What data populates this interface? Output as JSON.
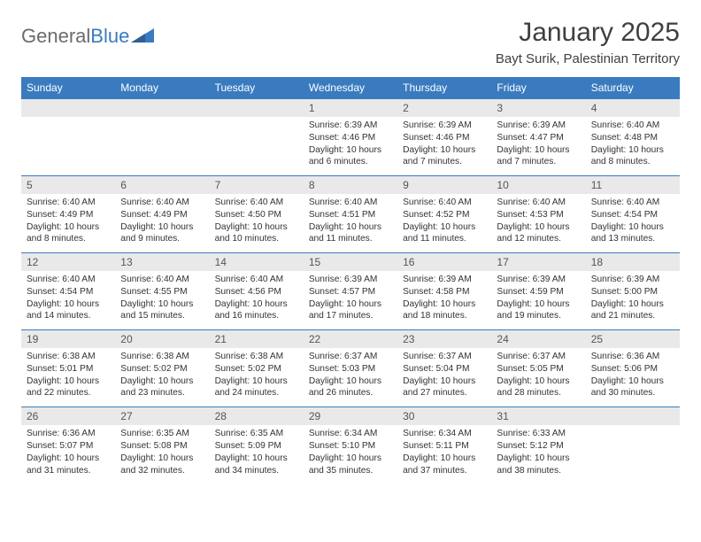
{
  "logo": {
    "text1": "General",
    "text2": "Blue"
  },
  "title": "January 2025",
  "location": "Bayt Surik, Palestinian Territory",
  "colors": {
    "header_bg": "#3a7bbf",
    "header_fg": "#ffffff",
    "daynum_bg": "#e9e9e9",
    "row_border": "#3a7bbf",
    "text": "#333333",
    "logo_gray": "#6b6b6b",
    "logo_blue": "#3a7bbf"
  },
  "weekdays": [
    "Sunday",
    "Monday",
    "Tuesday",
    "Wednesday",
    "Thursday",
    "Friday",
    "Saturday"
  ],
  "weeks": [
    [
      {
        "num": "",
        "lines": [
          "",
          "",
          "",
          ""
        ]
      },
      {
        "num": "",
        "lines": [
          "",
          "",
          "",
          ""
        ]
      },
      {
        "num": "",
        "lines": [
          "",
          "",
          "",
          ""
        ]
      },
      {
        "num": "1",
        "lines": [
          "Sunrise: 6:39 AM",
          "Sunset: 4:46 PM",
          "Daylight: 10 hours",
          "and 6 minutes."
        ]
      },
      {
        "num": "2",
        "lines": [
          "Sunrise: 6:39 AM",
          "Sunset: 4:46 PM",
          "Daylight: 10 hours",
          "and 7 minutes."
        ]
      },
      {
        "num": "3",
        "lines": [
          "Sunrise: 6:39 AM",
          "Sunset: 4:47 PM",
          "Daylight: 10 hours",
          "and 7 minutes."
        ]
      },
      {
        "num": "4",
        "lines": [
          "Sunrise: 6:40 AM",
          "Sunset: 4:48 PM",
          "Daylight: 10 hours",
          "and 8 minutes."
        ]
      }
    ],
    [
      {
        "num": "5",
        "lines": [
          "Sunrise: 6:40 AM",
          "Sunset: 4:49 PM",
          "Daylight: 10 hours",
          "and 8 minutes."
        ]
      },
      {
        "num": "6",
        "lines": [
          "Sunrise: 6:40 AM",
          "Sunset: 4:49 PM",
          "Daylight: 10 hours",
          "and 9 minutes."
        ]
      },
      {
        "num": "7",
        "lines": [
          "Sunrise: 6:40 AM",
          "Sunset: 4:50 PM",
          "Daylight: 10 hours",
          "and 10 minutes."
        ]
      },
      {
        "num": "8",
        "lines": [
          "Sunrise: 6:40 AM",
          "Sunset: 4:51 PM",
          "Daylight: 10 hours",
          "and 11 minutes."
        ]
      },
      {
        "num": "9",
        "lines": [
          "Sunrise: 6:40 AM",
          "Sunset: 4:52 PM",
          "Daylight: 10 hours",
          "and 11 minutes."
        ]
      },
      {
        "num": "10",
        "lines": [
          "Sunrise: 6:40 AM",
          "Sunset: 4:53 PM",
          "Daylight: 10 hours",
          "and 12 minutes."
        ]
      },
      {
        "num": "11",
        "lines": [
          "Sunrise: 6:40 AM",
          "Sunset: 4:54 PM",
          "Daylight: 10 hours",
          "and 13 minutes."
        ]
      }
    ],
    [
      {
        "num": "12",
        "lines": [
          "Sunrise: 6:40 AM",
          "Sunset: 4:54 PM",
          "Daylight: 10 hours",
          "and 14 minutes."
        ]
      },
      {
        "num": "13",
        "lines": [
          "Sunrise: 6:40 AM",
          "Sunset: 4:55 PM",
          "Daylight: 10 hours",
          "and 15 minutes."
        ]
      },
      {
        "num": "14",
        "lines": [
          "Sunrise: 6:40 AM",
          "Sunset: 4:56 PM",
          "Daylight: 10 hours",
          "and 16 minutes."
        ]
      },
      {
        "num": "15",
        "lines": [
          "Sunrise: 6:39 AM",
          "Sunset: 4:57 PM",
          "Daylight: 10 hours",
          "and 17 minutes."
        ]
      },
      {
        "num": "16",
        "lines": [
          "Sunrise: 6:39 AM",
          "Sunset: 4:58 PM",
          "Daylight: 10 hours",
          "and 18 minutes."
        ]
      },
      {
        "num": "17",
        "lines": [
          "Sunrise: 6:39 AM",
          "Sunset: 4:59 PM",
          "Daylight: 10 hours",
          "and 19 minutes."
        ]
      },
      {
        "num": "18",
        "lines": [
          "Sunrise: 6:39 AM",
          "Sunset: 5:00 PM",
          "Daylight: 10 hours",
          "and 21 minutes."
        ]
      }
    ],
    [
      {
        "num": "19",
        "lines": [
          "Sunrise: 6:38 AM",
          "Sunset: 5:01 PM",
          "Daylight: 10 hours",
          "and 22 minutes."
        ]
      },
      {
        "num": "20",
        "lines": [
          "Sunrise: 6:38 AM",
          "Sunset: 5:02 PM",
          "Daylight: 10 hours",
          "and 23 minutes."
        ]
      },
      {
        "num": "21",
        "lines": [
          "Sunrise: 6:38 AM",
          "Sunset: 5:02 PM",
          "Daylight: 10 hours",
          "and 24 minutes."
        ]
      },
      {
        "num": "22",
        "lines": [
          "Sunrise: 6:37 AM",
          "Sunset: 5:03 PM",
          "Daylight: 10 hours",
          "and 26 minutes."
        ]
      },
      {
        "num": "23",
        "lines": [
          "Sunrise: 6:37 AM",
          "Sunset: 5:04 PM",
          "Daylight: 10 hours",
          "and 27 minutes."
        ]
      },
      {
        "num": "24",
        "lines": [
          "Sunrise: 6:37 AM",
          "Sunset: 5:05 PM",
          "Daylight: 10 hours",
          "and 28 minutes."
        ]
      },
      {
        "num": "25",
        "lines": [
          "Sunrise: 6:36 AM",
          "Sunset: 5:06 PM",
          "Daylight: 10 hours",
          "and 30 minutes."
        ]
      }
    ],
    [
      {
        "num": "26",
        "lines": [
          "Sunrise: 6:36 AM",
          "Sunset: 5:07 PM",
          "Daylight: 10 hours",
          "and 31 minutes."
        ]
      },
      {
        "num": "27",
        "lines": [
          "Sunrise: 6:35 AM",
          "Sunset: 5:08 PM",
          "Daylight: 10 hours",
          "and 32 minutes."
        ]
      },
      {
        "num": "28",
        "lines": [
          "Sunrise: 6:35 AM",
          "Sunset: 5:09 PM",
          "Daylight: 10 hours",
          "and 34 minutes."
        ]
      },
      {
        "num": "29",
        "lines": [
          "Sunrise: 6:34 AM",
          "Sunset: 5:10 PM",
          "Daylight: 10 hours",
          "and 35 minutes."
        ]
      },
      {
        "num": "30",
        "lines": [
          "Sunrise: 6:34 AM",
          "Sunset: 5:11 PM",
          "Daylight: 10 hours",
          "and 37 minutes."
        ]
      },
      {
        "num": "31",
        "lines": [
          "Sunrise: 6:33 AM",
          "Sunset: 5:12 PM",
          "Daylight: 10 hours",
          "and 38 minutes."
        ]
      },
      {
        "num": "",
        "lines": [
          "",
          "",
          "",
          ""
        ]
      }
    ]
  ]
}
